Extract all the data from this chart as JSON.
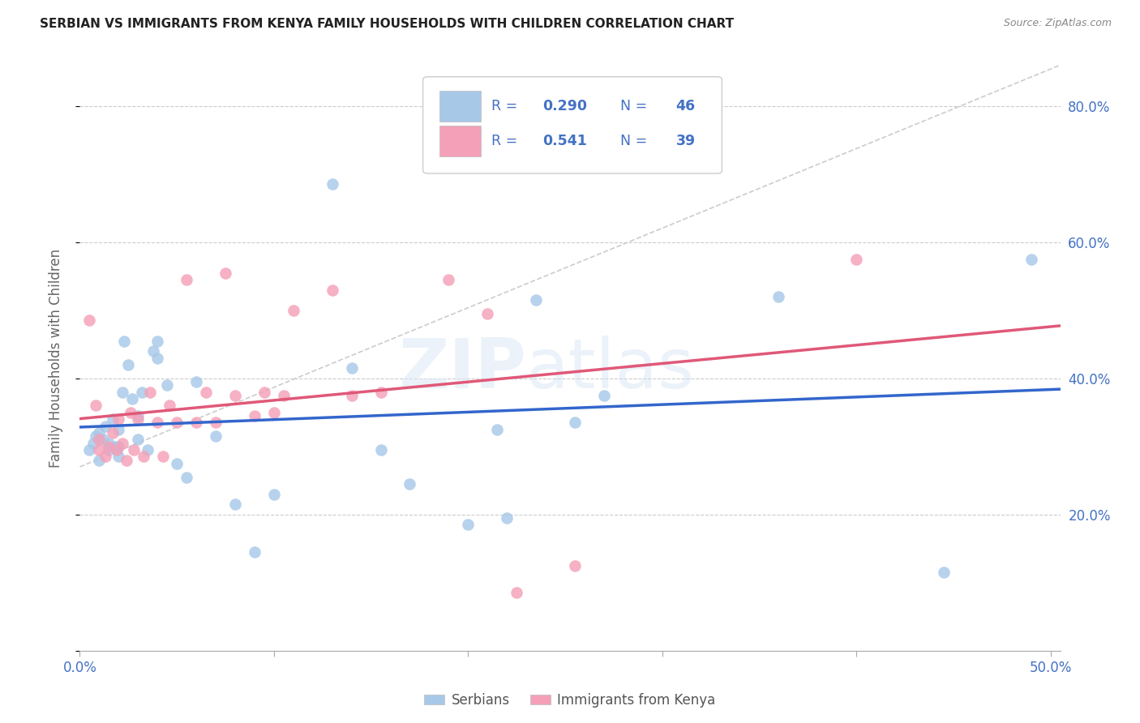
{
  "title": "SERBIAN VS IMMIGRANTS FROM KENYA FAMILY HOUSEHOLDS WITH CHILDREN CORRELATION CHART",
  "source": "Source: ZipAtlas.com",
  "ylabel": "Family Households with Children",
  "legend_serbian_R": "0.290",
  "legend_serbian_N": "46",
  "legend_kenya_R": "0.541",
  "legend_kenya_N": "39",
  "legend_labels": [
    "Serbians",
    "Immigrants from Kenya"
  ],
  "xlim": [
    0.0,
    0.505
  ],
  "ylim": [
    0.0,
    0.86
  ],
  "xticks": [
    0.0,
    0.1,
    0.2,
    0.3,
    0.4,
    0.5
  ],
  "yticks": [
    0.0,
    0.2,
    0.4,
    0.6,
    0.8
  ],
  "xticklabels": [
    "0.0%",
    "",
    "",
    "",
    "",
    "50.0%"
  ],
  "yticklabels_right": [
    "",
    "20.0%",
    "40.0%",
    "60.0%",
    "80.0%"
  ],
  "serbian_x": [
    0.005,
    0.007,
    0.008,
    0.01,
    0.01,
    0.012,
    0.013,
    0.015,
    0.015,
    0.017,
    0.018,
    0.02,
    0.02,
    0.02,
    0.022,
    0.023,
    0.025,
    0.027,
    0.03,
    0.03,
    0.032,
    0.035,
    0.038,
    0.04,
    0.04,
    0.045,
    0.05,
    0.055,
    0.06,
    0.07,
    0.08,
    0.09,
    0.1,
    0.13,
    0.14,
    0.155,
    0.17,
    0.2,
    0.215,
    0.22,
    0.235,
    0.255,
    0.27,
    0.36,
    0.445,
    0.49
  ],
  "serbian_y": [
    0.295,
    0.305,
    0.315,
    0.28,
    0.32,
    0.31,
    0.33,
    0.295,
    0.305,
    0.34,
    0.3,
    0.285,
    0.3,
    0.325,
    0.38,
    0.455,
    0.42,
    0.37,
    0.345,
    0.31,
    0.38,
    0.295,
    0.44,
    0.43,
    0.455,
    0.39,
    0.275,
    0.255,
    0.395,
    0.315,
    0.215,
    0.145,
    0.23,
    0.685,
    0.415,
    0.295,
    0.245,
    0.185,
    0.325,
    0.195,
    0.515,
    0.335,
    0.375,
    0.52,
    0.115,
    0.575
  ],
  "kenya_x": [
    0.005,
    0.008,
    0.01,
    0.01,
    0.013,
    0.015,
    0.017,
    0.019,
    0.02,
    0.022,
    0.024,
    0.026,
    0.028,
    0.03,
    0.033,
    0.036,
    0.04,
    0.043,
    0.046,
    0.05,
    0.055,
    0.06,
    0.065,
    0.07,
    0.075,
    0.08,
    0.09,
    0.095,
    0.1,
    0.105,
    0.11,
    0.13,
    0.14,
    0.155,
    0.19,
    0.21,
    0.225,
    0.255,
    0.4
  ],
  "kenya_y": [
    0.485,
    0.36,
    0.295,
    0.31,
    0.285,
    0.3,
    0.32,
    0.295,
    0.34,
    0.305,
    0.28,
    0.35,
    0.295,
    0.34,
    0.285,
    0.38,
    0.335,
    0.285,
    0.36,
    0.335,
    0.545,
    0.335,
    0.38,
    0.335,
    0.555,
    0.375,
    0.345,
    0.38,
    0.35,
    0.375,
    0.5,
    0.53,
    0.375,
    0.38,
    0.545,
    0.495,
    0.085,
    0.125,
    0.575
  ],
  "serbian_line_color": "#3366cc",
  "kenya_line_color": "#e05878",
  "scatter_serbian_color": "#a8c8e8",
  "scatter_kenya_color": "#f4a0b8",
  "background_color": "#ffffff",
  "grid_color": "#cccccc",
  "tick_color": "#4472c4",
  "title_color": "#222222",
  "ylabel_color": "#666666",
  "source_color": "#888888",
  "ref_line_color": "#cccccc"
}
